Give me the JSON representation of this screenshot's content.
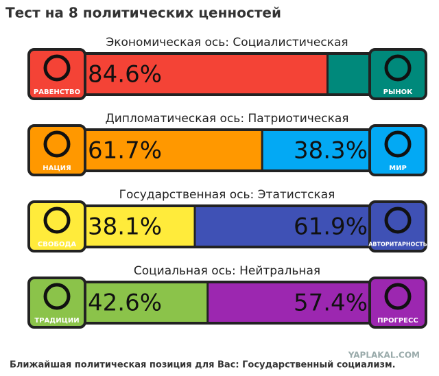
{
  "title": "Тест на 8 политических ценностей",
  "axes": [
    {
      "name": "Экономическая ось: Социалистическая",
      "left": {
        "label": "РАВЕНСТВО",
        "value": 84.6,
        "value_label": "84.6%",
        "color": "#f44336"
      },
      "right": {
        "label": "РЫНОК",
        "value": 15.4,
        "color": "#00897b"
      }
    },
    {
      "name": "Дипломатическая ось: Патриотическая",
      "left": {
        "label": "НАЦИЯ",
        "value": 61.7,
        "value_label": "61.7%",
        "color": "#ff9800"
      },
      "right": {
        "label": "МИР",
        "value": 38.3,
        "value_label": "38.3%",
        "color": "#03a9f4"
      }
    },
    {
      "name": "Государственная ось: Этатистская",
      "left": {
        "label": "СВОБОДА",
        "value": 38.1,
        "value_label": "38.1%",
        "color": "#ffeb3b"
      },
      "right": {
        "label": "АВТОРИТАРНОСТЬ",
        "value": 61.9,
        "value_label": "61.9%",
        "color": "#3f51b5"
      }
    },
    {
      "name": "Социальная ось: Нейтральная",
      "left": {
        "label": "ТРАДИЦИИ",
        "value": 42.6,
        "value_label": "42.6%",
        "color": "#8bc34a"
      },
      "right": {
        "label": "ПРОГРЕСС",
        "value": 57.4,
        "value_label": "57.4%",
        "color": "#9c27b0"
      }
    }
  ],
  "watermark": "YAPLAKAL.COM",
  "footer": "Ближайшая политическая позиция для Вас: Государственный социализм."
}
